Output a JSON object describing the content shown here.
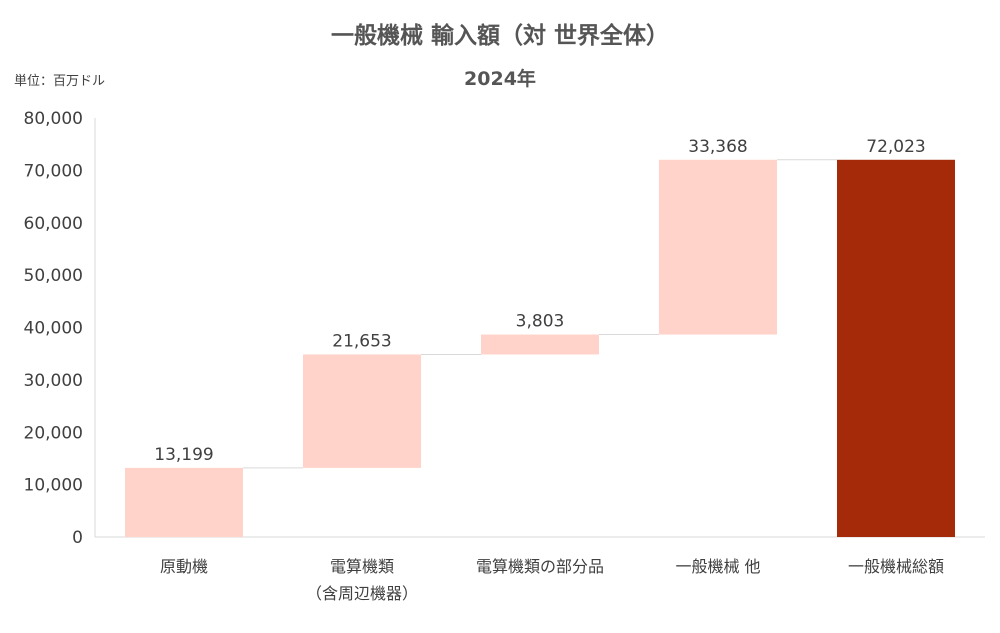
{
  "chart_data": {
    "type": "waterfall",
    "title": "一般機械 輸入額（対 世界全体）",
    "subtitle": "2024年",
    "unit_label": "単位：百万ドル",
    "ylim": [
      0,
      80000
    ],
    "yticks": [
      "0",
      "10,000",
      "20,000",
      "30,000",
      "40,000",
      "50,000",
      "60,000",
      "70,000",
      "80,000"
    ],
    "ytick_values": [
      0,
      10000,
      20000,
      30000,
      40000,
      50000,
      60000,
      70000,
      80000
    ],
    "categories": [
      [
        "原動機"
      ],
      [
        "電算機類",
        "（含周辺機器）"
      ],
      [
        "電算機類の部分品"
      ],
      [
        "一般機械 他"
      ],
      [
        "一般機械総額"
      ]
    ],
    "values": [
      13199,
      21653,
      3803,
      33368,
      72023
    ],
    "data_labels": [
      "13,199",
      "21,653",
      "3,803",
      "33,368",
      "72,023"
    ],
    "is_total": [
      false,
      false,
      false,
      false,
      true
    ],
    "colors": {
      "increment": "#FFD3C9",
      "total": "#A52A0A",
      "connector": "#D9D9D9",
      "axis": "#D9D9D9"
    },
    "grid": false
  }
}
